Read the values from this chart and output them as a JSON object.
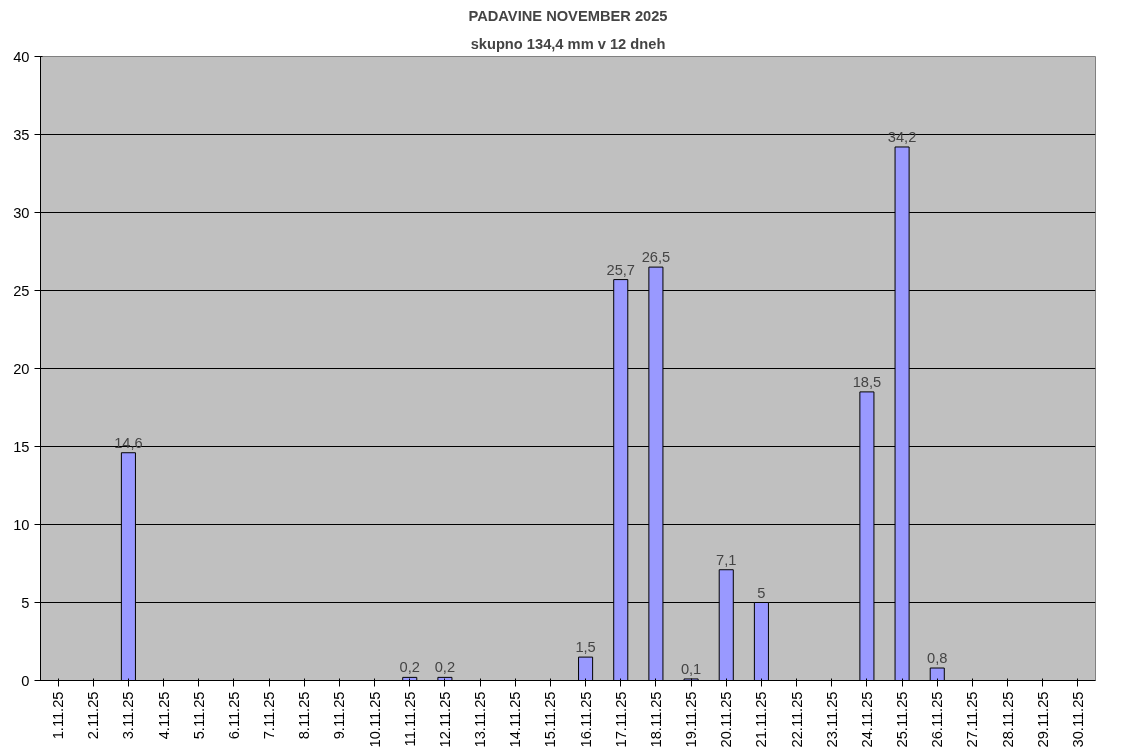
{
  "chart_data": {
    "type": "bar",
    "title": "PADAVINE NOVEMBER 2025",
    "subtitle": "skupno 134,4 mm v 12 dneh",
    "categories": [
      "1.11.25",
      "2.11.25",
      "3.11.25",
      "4.11.25",
      "5.11.25",
      "6.11.25",
      "7.11.25",
      "8.11.25",
      "9.11.25",
      "10.11.25",
      "11.11.25",
      "12.11.25",
      "13.11.25",
      "14.11.25",
      "15.11.25",
      "16.11.25",
      "17.11.25",
      "18.11.25",
      "19.11.25",
      "20.11.25",
      "21.11.25",
      "22.11.25",
      "23.11.25",
      "24.11.25",
      "25.11.25",
      "26.11.25",
      "27.11.25",
      "28.11.25",
      "29.11.25",
      "30.11.25"
    ],
    "values": [
      null,
      null,
      14.6,
      null,
      null,
      null,
      null,
      null,
      null,
      null,
      0.2,
      0.2,
      null,
      null,
      null,
      1.5,
      25.7,
      26.5,
      0.1,
      7.1,
      5,
      null,
      null,
      18.5,
      34.2,
      0.8,
      null,
      null,
      null,
      null
    ],
    "value_labels": [
      null,
      null,
      "14,6",
      null,
      null,
      null,
      null,
      null,
      null,
      null,
      "0,2",
      "0,2",
      null,
      null,
      null,
      "1,5",
      "25,7",
      "26,5",
      "0,1",
      "7,1",
      "5",
      null,
      null,
      "18,5",
      "34,2",
      "0,8",
      null,
      null,
      null,
      null
    ],
    "color": "#9999ff",
    "ylim": [
      0,
      40
    ],
    "yticks": [
      0,
      5,
      10,
      15,
      20,
      25,
      30,
      35,
      40
    ],
    "grid": "y"
  }
}
